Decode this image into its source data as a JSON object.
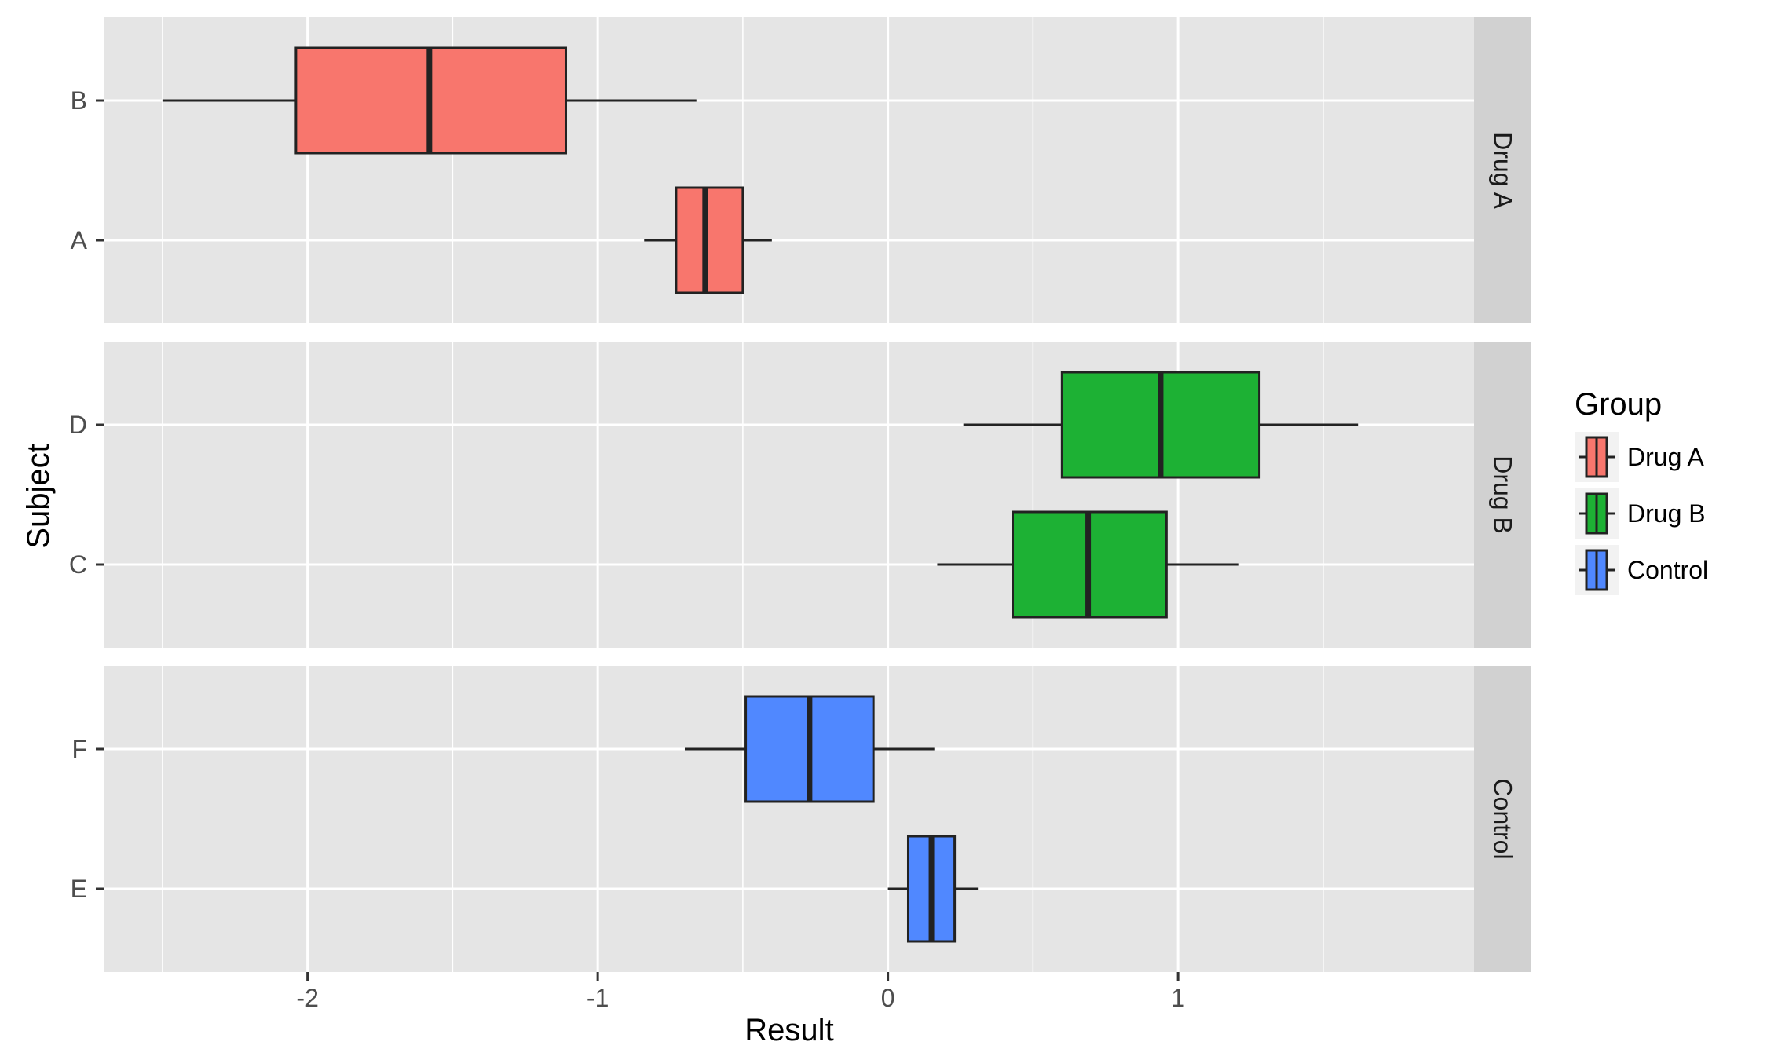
{
  "chart_data": {
    "type": "boxplot",
    "orientation": "horizontal",
    "xlabel": "Result",
    "ylabel": "Subject",
    "xlim": [
      -2.7,
      2.02
    ],
    "x_ticks": [
      -2,
      -1,
      0,
      1
    ],
    "x_tick_labels": [
      "-2",
      "-1",
      "0",
      "1"
    ],
    "grid": true,
    "legend": {
      "title": "Group",
      "placement": "right",
      "entries": [
        "Drug A",
        "Drug B",
        "Control"
      ]
    },
    "colors": {
      "Drug A": "#F8766D",
      "Drug B": "#1DB134",
      "Control": "#5088FF",
      "panel_background": "#E5E5E5",
      "grid": "#FFFFFF",
      "strip_background": "#D1D1D1",
      "box_outline": "#222222"
    },
    "facets": [
      {
        "label": "Drug A",
        "group": "Drug A",
        "subjects": [
          {
            "label": "B",
            "whisker_low": -2.5,
            "q1": -2.04,
            "median": -1.58,
            "q3": -1.11,
            "whisker_high": -0.66
          },
          {
            "label": "A",
            "whisker_low": -0.84,
            "q1": -0.73,
            "median": -0.63,
            "q3": -0.5,
            "whisker_high": -0.4
          }
        ]
      },
      {
        "label": "Drug B",
        "group": "Drug B",
        "subjects": [
          {
            "label": "D",
            "whisker_low": 0.26,
            "q1": 0.6,
            "median": 0.94,
            "q3": 1.28,
            "whisker_high": 1.62
          },
          {
            "label": "C",
            "whisker_low": 0.17,
            "q1": 0.43,
            "median": 0.69,
            "q3": 0.96,
            "whisker_high": 1.21
          }
        ]
      },
      {
        "label": "Control",
        "group": "Control",
        "subjects": [
          {
            "label": "F",
            "whisker_low": -0.7,
            "q1": -0.49,
            "median": -0.27,
            "q3": -0.05,
            "whisker_high": 0.16
          },
          {
            "label": "E",
            "whisker_low": 0.0,
            "q1": 0.07,
            "median": 0.15,
            "q3": 0.23,
            "whisker_high": 0.31
          }
        ]
      }
    ]
  }
}
